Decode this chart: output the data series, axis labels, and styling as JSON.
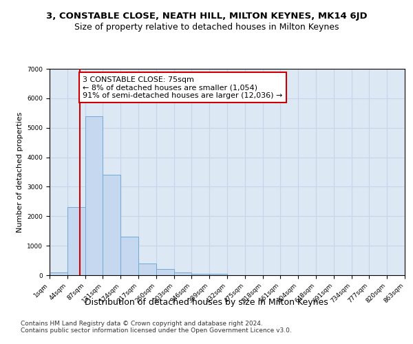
{
  "title1": "3, CONSTABLE CLOSE, NEATH HILL, MILTON KEYNES, MK14 6JD",
  "title2": "Size of property relative to detached houses in Milton Keynes",
  "xlabel": "Distribution of detached houses by size in Milton Keynes",
  "ylabel": "Number of detached properties",
  "bin_edges": [
    1,
    44,
    87,
    131,
    174,
    217,
    260,
    303,
    346,
    389,
    432,
    475,
    518,
    561,
    604,
    648,
    691,
    734,
    777,
    820,
    863
  ],
  "bin_labels": [
    "1sqm",
    "44sqm",
    "87sqm",
    "131sqm",
    "174sqm",
    "217sqm",
    "260sqm",
    "303sqm",
    "346sqm",
    "389sqm",
    "432sqm",
    "475sqm",
    "518sqm",
    "561sqm",
    "604sqm",
    "648sqm",
    "691sqm",
    "734sqm",
    "777sqm",
    "820sqm",
    "863sqm"
  ],
  "counts": [
    100,
    2300,
    5400,
    3400,
    1300,
    400,
    200,
    100,
    50,
    50,
    10,
    5,
    2,
    1,
    1,
    0,
    0,
    0,
    0,
    0
  ],
  "bar_color": "#c5d8f0",
  "bar_edge_color": "#6faad4",
  "property_line_x": 75,
  "property_line_color": "#cc0000",
  "annotation_text": "3 CONSTABLE CLOSE: 75sqm\n← 8% of detached houses are smaller (1,054)\n91% of semi-detached houses are larger (12,036) →",
  "annotation_box_color": "#ffffff",
  "annotation_box_edge_color": "#cc0000",
  "ylim": [
    0,
    7000
  ],
  "yticks": [
    0,
    1000,
    2000,
    3000,
    4000,
    5000,
    6000,
    7000
  ],
  "grid_color": "#c8d4e8",
  "bg_color": "#dce8f4",
  "footer": "Contains HM Land Registry data © Crown copyright and database right 2024.\nContains public sector information licensed under the Open Government Licence v3.0.",
  "title1_fontsize": 9.5,
  "title2_fontsize": 9,
  "xlabel_fontsize": 9,
  "ylabel_fontsize": 8,
  "annot_fontsize": 8,
  "tick_fontsize": 6.5
}
